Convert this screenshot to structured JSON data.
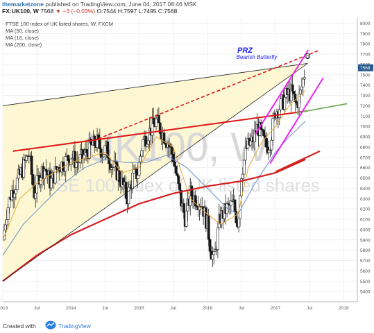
{
  "header": {
    "author": "themarketzone",
    "published": "published on TradingView.com, June 04, 2017 08:46 MSK",
    "symbol": "FX:UK100, W",
    "last": "7568",
    "change": "▼ −3 (−0.03%)",
    "ohlc": "O:7544 H:7597 L:7495 C:7568"
  },
  "legend": {
    "title": "FTSE 100 index of UK listed shares, W, FXCM",
    "ma50": "MA (50, close)",
    "ma18": "MA (18, close)",
    "ma200": "MA (200, close)"
  },
  "watermark": {
    "symbol": "UK100, W",
    "description": "FTSE 100 index of UK listed shares"
  },
  "annotation": {
    "prz": "PRZ",
    "pattern": "Bearish Butterfly",
    "marker": "D"
  },
  "footer": {
    "created": "Created with",
    "brand": "TradingView"
  },
  "chart_data": {
    "type": "candlestick",
    "timeframe": "weekly",
    "ylim": [
      5300,
      8050
    ],
    "yticks": [
      5400,
      5500,
      5600,
      5700,
      5800,
      5900,
      6000,
      6100,
      6200,
      6300,
      6400,
      6500,
      6600,
      6700,
      6800,
      6900,
      7000,
      7100,
      7200,
      7300,
      7400,
      7500,
      7600,
      7700,
      7800,
      7900,
      8000
    ],
    "ytick_labels": [
      "5400",
      "5500",
      "5600",
      "5700",
      "5800",
      "5900",
      "6000",
      "6100",
      "6200",
      "6300",
      "6400",
      "6500",
      "6600",
      "6700",
      "6800",
      "6900",
      "7000",
      "7100",
      "7200",
      "7300",
      "7400",
      "7500",
      "7600",
      "7700",
      "7800",
      "7900",
      "8000"
    ],
    "xlim": [
      2013.0,
      2018.2
    ],
    "xticks": [
      2013.0,
      2013.5,
      2014.0,
      2014.5,
      2015.0,
      2015.5,
      2016.0,
      2016.5,
      2017.0,
      2017.5,
      2018.0
    ],
    "xtick_labels": [
      "2013",
      "Jul",
      "2014",
      "Jul",
      "2015",
      "Jul",
      "2016",
      "Jul",
      "2017",
      "Jul",
      "2018"
    ],
    "last_price": 7568,
    "last_label": "7568",
    "grid": true,
    "close_path": [
      [
        2013.0,
        5900
      ],
      [
        2013.05,
        6150
      ],
      [
        2013.12,
        6350
      ],
      [
        2013.2,
        6450
      ],
      [
        2013.3,
        6600
      ],
      [
        2013.38,
        6750
      ],
      [
        2013.46,
        6350
      ],
      [
        2013.55,
        6550
      ],
      [
        2013.62,
        6600
      ],
      [
        2013.7,
        6450
      ],
      [
        2013.8,
        6600
      ],
      [
        2013.9,
        6650
      ],
      [
        2014.0,
        6720
      ],
      [
        2014.08,
        6650
      ],
      [
        2014.18,
        6700
      ],
      [
        2014.28,
        6800
      ],
      [
        2014.38,
        6850
      ],
      [
        2014.46,
        6750
      ],
      [
        2014.52,
        6780
      ],
      [
        2014.6,
        6620
      ],
      [
        2014.68,
        6550
      ],
      [
        2014.78,
        6400
      ],
      [
        2014.82,
        6300
      ],
      [
        2014.9,
        6500
      ],
      [
        2014.98,
        6550
      ],
      [
        2015.05,
        6850
      ],
      [
        2015.15,
        6950
      ],
      [
        2015.25,
        7050
      ],
      [
        2015.33,
        6950
      ],
      [
        2015.42,
        6850
      ],
      [
        2015.5,
        6700
      ],
      [
        2015.55,
        6500
      ],
      [
        2015.62,
        6250
      ],
      [
        2015.68,
        6100
      ],
      [
        2015.75,
        6350
      ],
      [
        2015.83,
        6300
      ],
      [
        2015.92,
        6250
      ],
      [
        2016.0,
        6050
      ],
      [
        2016.05,
        5800
      ],
      [
        2016.1,
        5700
      ],
      [
        2016.18,
        6100
      ],
      [
        2016.28,
        6200
      ],
      [
        2016.38,
        6250
      ],
      [
        2016.45,
        6050
      ],
      [
        2016.5,
        6550
      ],
      [
        2016.58,
        6800
      ],
      [
        2016.66,
        6850
      ],
      [
        2016.74,
        7000
      ],
      [
        2016.8,
        6900
      ],
      [
        2016.86,
        6800
      ],
      [
        2016.92,
        6850
      ],
      [
        2017.0,
        7150
      ],
      [
        2017.08,
        7200
      ],
      [
        2017.16,
        7300
      ],
      [
        2017.24,
        7330
      ],
      [
        2017.3,
        7200
      ],
      [
        2017.36,
        7300
      ],
      [
        2017.42,
        7500
      ],
      [
        2017.44,
        7568
      ]
    ],
    "ma50": [
      [
        2013.0,
        5750
      ],
      [
        2013.3,
        6050
      ],
      [
        2013.6,
        6250
      ],
      [
        2013.9,
        6450
      ],
      [
        2014.2,
        6600
      ],
      [
        2014.5,
        6680
      ],
      [
        2014.8,
        6650
      ],
      [
        2015.1,
        6650
      ],
      [
        2015.4,
        6720
      ],
      [
        2015.7,
        6600
      ],
      [
        2016.0,
        6400
      ],
      [
        2016.3,
        6200
      ],
      [
        2016.45,
        6150
      ],
      [
        2016.7,
        6450
      ],
      [
        2017.0,
        6750
      ],
      [
        2017.2,
        6900
      ],
      [
        2017.44,
        7050
      ]
    ],
    "ma18": [
      [
        2013.0,
        5900
      ],
      [
        2013.25,
        6300
      ],
      [
        2013.5,
        6450
      ],
      [
        2013.75,
        6550
      ],
      [
        2014.0,
        6650
      ],
      [
        2014.25,
        6700
      ],
      [
        2014.5,
        6750
      ],
      [
        2014.75,
        6550
      ],
      [
        2015.0,
        6600
      ],
      [
        2015.25,
        6900
      ],
      [
        2015.5,
        6800
      ],
      [
        2015.75,
        6300
      ],
      [
        2016.0,
        6150
      ],
      [
        2016.2,
        6050
      ],
      [
        2016.45,
        6150
      ],
      [
        2016.6,
        6600
      ],
      [
        2016.8,
        6850
      ],
      [
        2017.0,
        7000
      ],
      [
        2017.2,
        7200
      ],
      [
        2017.44,
        7350
      ]
    ],
    "ma200": [
      [
        2013.0,
        5500
      ],
      [
        2013.5,
        5750
      ],
      [
        2014.0,
        5950
      ],
      [
        2014.5,
        6100
      ],
      [
        2015.0,
        6250
      ],
      [
        2015.5,
        6350
      ],
      [
        2016.0,
        6420
      ],
      [
        2016.5,
        6470
      ],
      [
        2017.0,
        6550
      ],
      [
        2017.44,
        6680
      ]
    ],
    "trendlines": [
      {
        "name": "upper-black",
        "from": [
          2013.0,
          7200
        ],
        "to": [
          2017.47,
          7610
        ]
      },
      {
        "name": "lower-black",
        "from": [
          2013.0,
          5500
        ],
        "to": [
          2017.47,
          7610
        ]
      },
      {
        "name": "red-support",
        "from": [
          2013.15,
          6760
        ],
        "to": [
          2017.47,
          7150
        ]
      },
      {
        "name": "red-dashed-resistance",
        "from": [
          2014.4,
          6880
        ],
        "to": [
          2017.65,
          7740
        ]
      },
      {
        "name": "green-extension",
        "from": [
          2017.3,
          7130
        ],
        "to": [
          2018.05,
          7220
        ]
      },
      {
        "name": "magenta-channel-upper",
        "from": [
          2016.7,
          6920
        ],
        "to": [
          2017.48,
          7740
        ]
      },
      {
        "name": "magenta-channel-lower",
        "from": [
          2016.92,
          6640
        ],
        "to": [
          2017.7,
          7470
        ]
      },
      {
        "name": "red-200ma-extension",
        "from": [
          2017.0,
          6560
        ],
        "to": [
          2017.65,
          6760
        ]
      }
    ]
  }
}
